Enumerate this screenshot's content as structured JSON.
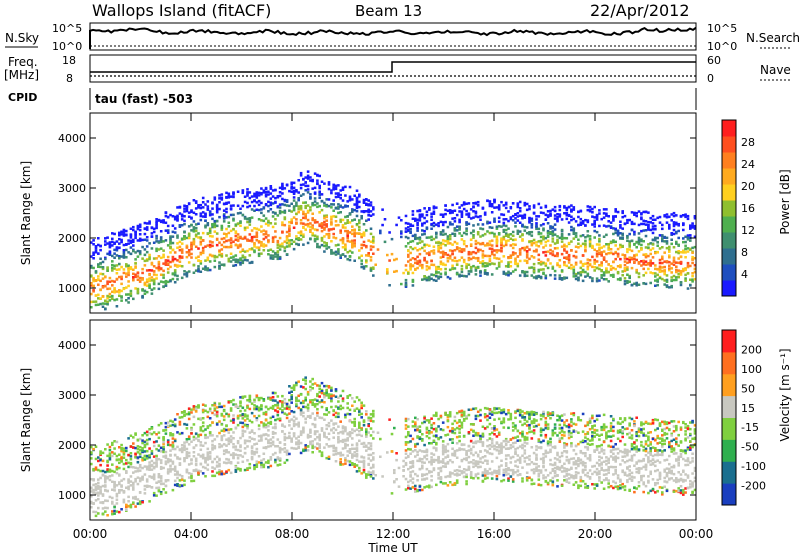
{
  "header": {
    "station": "Wallops Island (fitACF)",
    "beam": "Beam 13",
    "date": "22/Apr/2012"
  },
  "panel_nsky": {
    "left_label": "N.Sky",
    "right_label": "N.Search",
    "ticks_left": [
      "10^5",
      "10^0"
    ],
    "ticks_right": [
      "10^5",
      "10^0"
    ]
  },
  "panel_freq": {
    "left_label_1": "Freq.",
    "left_label_2": "[MHz]",
    "cpid_label": "CPID",
    "right_label": "Nave",
    "ticks_left": [
      "18",
      "8"
    ],
    "ticks_right": [
      "60",
      "0"
    ],
    "cpid_text": "tau (fast) -503"
  },
  "chart_data": [
    {
      "type": "heatmap",
      "title": "",
      "quantity": "Power",
      "ylabel": "Slant Range [km]",
      "xlabel": "",
      "ylim": [
        500,
        4500
      ],
      "xlim_hours": [
        0,
        24
      ],
      "yticks": [
        "1000",
        "2000",
        "3000",
        "4000"
      ],
      "colorbar_label": "Power [dB]",
      "colorbar_ticks": [
        "4",
        "8",
        "12",
        "16",
        "20",
        "24",
        "28"
      ],
      "colorbar_colors": [
        "#1a1aff",
        "#1f4fbf",
        "#2f6f8f",
        "#3f8f6f",
        "#4faf4f",
        "#8fbf2f",
        "#ffcf1f",
        "#ffaa1f",
        "#ff7f1f",
        "#ff4f1f",
        "#ff1f1f"
      ],
      "ridge_hours": [
        0,
        2,
        4,
        6,
        7.5,
        8.5,
        9.5,
        10.5,
        11.5,
        12,
        14,
        16,
        18,
        20,
        22,
        24
      ],
      "ridge_range_km": [
        1000,
        1300,
        1800,
        2000,
        2100,
        2400,
        2200,
        2000,
        1600,
        1500,
        1700,
        1800,
        1700,
        1650,
        1550,
        1500
      ]
    },
    {
      "type": "heatmap",
      "title": "",
      "quantity": "Velocity",
      "ylabel": "Slant Range [km]",
      "xlabel": "Time UT",
      "ylim": [
        500,
        4500
      ],
      "xlim_hours": [
        0,
        24
      ],
      "xticks": [
        "00:00",
        "04:00",
        "08:00",
        "12:00",
        "16:00",
        "20:00",
        "00:00"
      ],
      "yticks": [
        "1000",
        "2000",
        "3000",
        "4000"
      ],
      "colorbar_label": "Velocity [m s⁻¹]",
      "colorbar_ticks": [
        "200",
        "100",
        "50",
        "15",
        "-15",
        "-50",
        "-100",
        "-200"
      ],
      "colorbar_colors": [
        "#1a3fbf",
        "#1a6f8f",
        "#2faf4f",
        "#7fcf3f",
        "#c8c8c0",
        "#ff9f1f",
        "#ff6f1f",
        "#ff1f1f"
      ]
    }
  ]
}
